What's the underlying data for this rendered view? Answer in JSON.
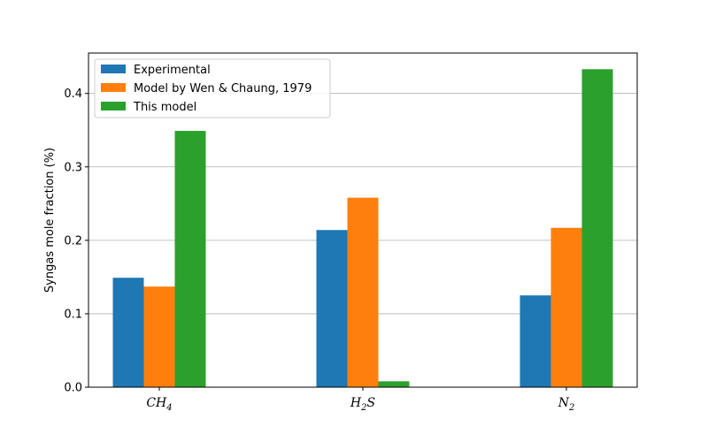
{
  "chart_data": {
    "type": "bar",
    "categories": [
      "CH4",
      "H2S",
      "N2"
    ],
    "category_labels": [
      {
        "base": "CH",
        "sub": "4"
      },
      {
        "base": "H",
        "sub": "2",
        "tail": "S"
      },
      {
        "base": "N",
        "sub": "2"
      }
    ],
    "series": [
      {
        "name": "Experimental",
        "color": "#1f77b4",
        "values": [
          0.149,
          0.214,
          0.125
        ]
      },
      {
        "name": "Model by Wen & Chaung, 1979",
        "color": "#ff7f0e",
        "values": [
          0.137,
          0.258,
          0.217
        ]
      },
      {
        "name": "This model",
        "color": "#2ca02c",
        "values": [
          0.349,
          0.008,
          0.433
        ]
      }
    ],
    "title": "",
    "xlabel": "",
    "ylabel": "Syngas mole fraction (%)",
    "ylim": [
      0,
      0.455
    ],
    "yticks": [
      "0.0",
      "0.1",
      "0.2",
      "0.3",
      "0.4"
    ],
    "grid": "horizontal",
    "legend_position": "top-left"
  }
}
